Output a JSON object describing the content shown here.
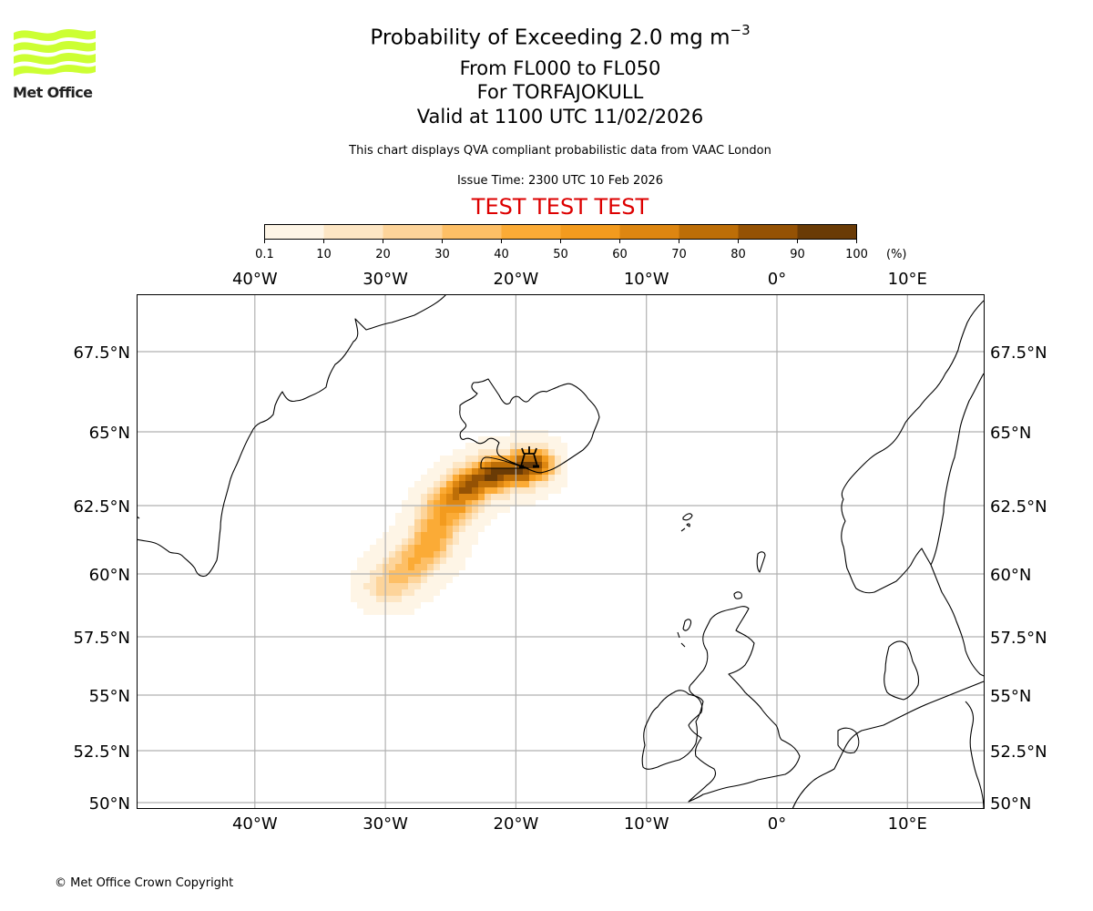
{
  "logo": {
    "name": "Met Office",
    "color": "#ccff33",
    "text_color": "#222222"
  },
  "title": {
    "line1_prefix": "Probability of Exceeding 2.0 mg m",
    "line1_superscript": "−3",
    "line2": "From FL000 to FL050",
    "line3": "For TORFAJOKULL",
    "line4": "Valid at 1100 UTC 11/02/2026"
  },
  "subtitle": "This chart displays QVA compliant probabilistic data from VAAC London",
  "issue_time": "Issue Time: 2300 UTC 10 Feb 2026",
  "test_banner": {
    "text": "TEST TEST TEST",
    "color": "#dd0000"
  },
  "colorbar": {
    "unit_label": "(%)",
    "ticks": [
      "0.1",
      "10",
      "20",
      "30",
      "40",
      "50",
      "60",
      "70",
      "80",
      "90",
      "100"
    ],
    "colors": [
      "#fef5e6",
      "#fde6c4",
      "#fdd49a",
      "#fdbf66",
      "#fbab36",
      "#f39b1e",
      "#dd8611",
      "#bd6e07",
      "#955204",
      "#6a3b06"
    ]
  },
  "chart_data": {
    "type": "heatmap",
    "title": "Probability of Exceeding 2.0 mg m-3 From FL000 to FL050 For TORFAJOKULL Valid at 1100 UTC 11/02/2026",
    "volcano": {
      "name": "TORFAJOKULL",
      "lon": -19.1,
      "lat": 63.9,
      "symbol": "volcano"
    },
    "lon_range": [
      -49,
      16
    ],
    "lat_range": [
      49.8,
      69.2
    ],
    "x_ticks": [
      "40°W",
      "30°W",
      "20°W",
      "10°W",
      "0°",
      "10°E"
    ],
    "x_tick_values": [
      -40,
      -30,
      -20,
      -10,
      0,
      10
    ],
    "y_ticks": [
      "67.5°N",
      "65°N",
      "62.5°N",
      "60°N",
      "57.5°N",
      "55°N",
      "52.5°N",
      "50°N"
    ],
    "y_tick_values": [
      67.5,
      65,
      62.5,
      60,
      57.5,
      55,
      52.5,
      50
    ],
    "grid": true,
    "legend": "top colorbar",
    "value_unit": "%",
    "plume_description": "Ash probability plume extending south-west from south Iceland (~19°W 64°N) to ~31°W 59°N; highest probabilities (80-100%) near Iceland south coast between 19°W and 25°W, decreasing to 0.1-30% at the south-west tail.",
    "plume_axis": [
      {
        "lon": -19.2,
        "lat": 63.9,
        "p": 95
      },
      {
        "lon": -21.0,
        "lat": 63.8,
        "p": 92
      },
      {
        "lon": -22.5,
        "lat": 63.6,
        "p": 90
      },
      {
        "lon": -23.8,
        "lat": 63.3,
        "p": 85
      },
      {
        "lon": -24.8,
        "lat": 62.9,
        "p": 75
      },
      {
        "lon": -25.5,
        "lat": 62.5,
        "p": 55
      },
      {
        "lon": -26.0,
        "lat": 62.0,
        "p": 50
      },
      {
        "lon": -26.6,
        "lat": 61.4,
        "p": 45
      },
      {
        "lon": -27.3,
        "lat": 60.9,
        "p": 45
      },
      {
        "lon": -28.2,
        "lat": 60.4,
        "p": 40
      },
      {
        "lon": -29.3,
        "lat": 60.0,
        "p": 35
      },
      {
        "lon": -30.2,
        "lat": 59.6,
        "p": 25
      }
    ]
  },
  "copyright": "© Met Office Crown Copyright"
}
